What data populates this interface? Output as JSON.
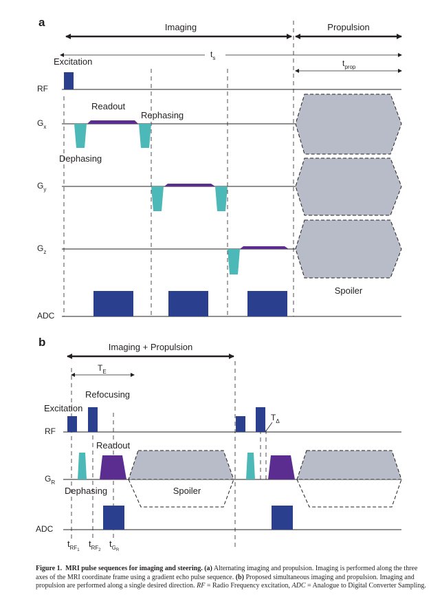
{
  "panel_a": {
    "label": "a",
    "imaging": "Imaging",
    "propulsion": "Propulsion",
    "ts": "t",
    "ts_sub": "s",
    "tprop": "t",
    "tprop_sub": "prop",
    "excitation": "Excitation",
    "readout": "Readout",
    "rephasing": "Rephasing",
    "dephasing": "Dephasing",
    "spoiler": "Spoiler",
    "rows": {
      "rf": "RF",
      "gx": "G",
      "gx_sub": "x",
      "gy": "G",
      "gy_sub": "y",
      "gz": "G",
      "gz_sub": "z",
      "adc": "ADC"
    }
  },
  "panel_b": {
    "label": "b",
    "imaging_propulsion": "Imaging + Propulsion",
    "te": "T",
    "te_sub": "E",
    "excitation": "Excitation",
    "refocusing": "Refocusing",
    "readout": "Readout",
    "dephasing": "Dephasing",
    "spoiler": "Spoiler",
    "t_delta": "T",
    "t_delta_sub": "Δ",
    "rows": {
      "rf": "RF",
      "gr": "G",
      "gr_sub": "R",
      "adc": "ADC"
    },
    "time_labels": {
      "t_rf1": "t",
      "t_rf1_sub": "RF",
      "t_rf1_subsub": "1",
      "t_rf2": "t",
      "t_rf2_sub": "RF",
      "t_rf2_subsub": "2",
      "t_gr": "t",
      "t_gr_sub": "G",
      "t_gr_subsub": "R"
    }
  },
  "caption": {
    "figure_label": "Figure 1.",
    "figure_title": "MRI pulse sequences for imaging and steering.",
    "part_a_label": "(a)",
    "part_a_text": " Alternating imaging and propulsion. Imaging is performed along the three axes of the MRI coordinate frame using a gradient echo pulse sequence. ",
    "part_b_label": "(b)",
    "part_b_text": " Proposed simultaneous imaging and propulsion. Imaging and propulsion are performed along a single desired direction. ",
    "rf_abbr": "RF",
    "rf_def": " = Radio Frequency excitation, ",
    "adc_abbr": "ADC",
    "adc_def": " = Analogue to Digital Converter Sampling."
  },
  "colors": {
    "rf_adc_block": "#2b3f8f",
    "gradient_lobe": "#4db8b8",
    "readout": "#5b2d91",
    "spoiler": "#b7bcc8",
    "line": "#231f20"
  }
}
